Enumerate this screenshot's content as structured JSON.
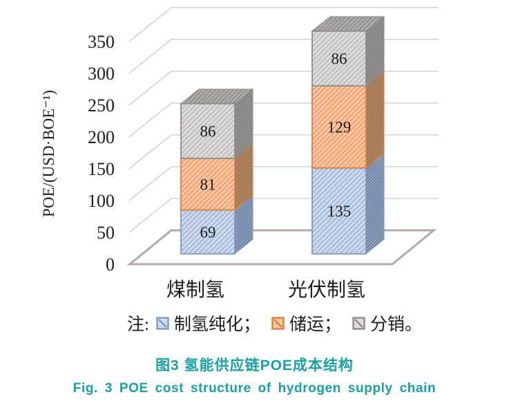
{
  "figure": {
    "caption_zh": "图3 氢能供应链POE成本结构",
    "caption_en": "Fig. 3 POE cost structure of hydrogen supply chain",
    "caption_color": "#17a0a6"
  },
  "legend": {
    "prefix": "注:",
    "items": [
      {
        "label": "制氢纯化；"
      },
      {
        "label": "储运；"
      },
      {
        "label": "分销。"
      }
    ]
  },
  "chart_data": {
    "type": "bar",
    "stacked": true,
    "projection": "3d",
    "title": "",
    "xlabel": "",
    "ylabel": "POE/(USD·BOE⁻¹)",
    "ylim": [
      0,
      350
    ],
    "yticks": [
      0,
      50,
      100,
      150,
      200,
      250,
      300,
      350
    ],
    "grid": true,
    "legend_position": "bottom",
    "data_labels": true,
    "categories": [
      "煤制氢",
      "光伏制氢"
    ],
    "series": [
      {
        "name": "制氢纯化",
        "values": [
          69,
          135
        ],
        "colors": {
          "fill": "#cfdbec",
          "stripe": "#9cb5d6",
          "border": "#7d99c2",
          "side": "#8fa4c0",
          "side_stripe": "#5e7390",
          "top": "#b3c2d8",
          "top_stripe": "#8aa2c4"
        }
      },
      {
        "name": "储运",
        "values": [
          81,
          129
        ],
        "colors": {
          "fill": "#fbcaa4",
          "stripe": "#f0986a",
          "border": "#e27e42",
          "side": "#b78a64",
          "side_stripe": "#8f694a",
          "top": "#edb88e",
          "top_stripe": "#d08b5c"
        }
      },
      {
        "name": "分销",
        "values": [
          86,
          86
        ],
        "colors": {
          "fill": "#dedcdc",
          "stripe": "#bcb9b7",
          "border": "#8f8d8b",
          "side": "#989593",
          "side_stripe": "#76746f",
          "top": "#aeaba8",
          "top_stripe": "#8b8885"
        }
      }
    ]
  },
  "style": {
    "grid_color": "#cfc8c5",
    "floor_color": "#b3aaa7",
    "text_color": "#1c1c1c",
    "background": "#ffffff"
  }
}
